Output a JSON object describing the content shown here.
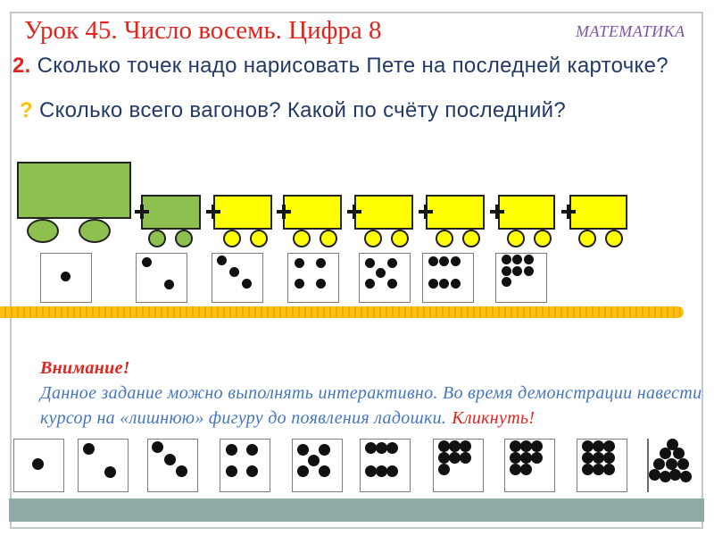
{
  "header": {
    "title": "Урок 45. Число восемь. Цифра 8",
    "subject": "МАТЕМАТИКА"
  },
  "questions": {
    "q1_number": "2.",
    "q1_text": "Сколько  точек надо нарисовать Пете на последней карточке?",
    "q2_mark": "?",
    "q2_text": "Сколько  всего вагонов? Какой по счёту последний?"
  },
  "note": {
    "heading": "Внимание!",
    "line1": "Данное задание можно выполнять интерактивно.  Во время демонстрации навести",
    "line2": "курсор на  «лишнюю» фигуру до появления ладошки.",
    "action": "Кликнуть!"
  },
  "train": {
    "coupler_symbol": "+",
    "cars": [
      {
        "type": "locomotive",
        "color": "green"
      },
      {
        "type": "wagon",
        "color": "green"
      },
      {
        "type": "wagon",
        "color": "yellow"
      },
      {
        "type": "wagon",
        "color": "yellow"
      },
      {
        "type": "wagon",
        "color": "yellow"
      },
      {
        "type": "wagon",
        "color": "yellow"
      },
      {
        "type": "wagon",
        "color": "yellow"
      },
      {
        "type": "wagon",
        "color": "yellow"
      }
    ]
  },
  "train_cards": {
    "dot_counts": [
      1,
      2,
      3,
      4,
      5,
      6,
      7
    ],
    "last_card_drawn": false
  },
  "bottom_cards": {
    "dot_counts": [
      1,
      2,
      3,
      4,
      5,
      6,
      7,
      8,
      9
    ],
    "pile_dot_count": 10
  },
  "colors": {
    "title_red": "#e2241d",
    "text_navy": "#223a67",
    "question_gold": "#ffc000",
    "subject_purple": "#7c53a5",
    "note_blue": "#4576c2",
    "train_green": "#8dc04f",
    "wagon_yellow": "#ffff00",
    "divider_orange": "#ffc013",
    "bottom_band_teal": "#8faba8",
    "dot_black": "#111111",
    "frame_gray": "#c3cacd"
  }
}
